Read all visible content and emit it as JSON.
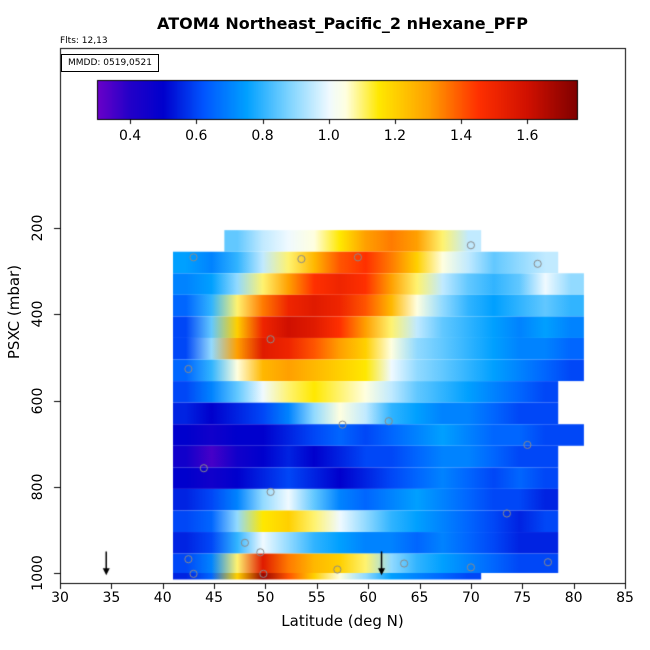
{
  "title": "ATOM4 Northeast_Pacific_2 nHexane_PFP",
  "annotations": {
    "flights": "Flts: 12,13",
    "mmdd": "MMDD: 0519,0521"
  },
  "axes": {
    "x_label": "Latitude (deg N)",
    "y_label": "PSXC (mbar)",
    "x_ticks": [
      "30",
      "35",
      "40",
      "45",
      "50",
      "55",
      "60",
      "65",
      "70",
      "75",
      "80",
      "85"
    ],
    "y_ticks": [
      "200",
      "400",
      "600",
      "800",
      "1000"
    ],
    "x_range": [
      30,
      85
    ],
    "y_range_reversed": [
      200,
      1000
    ]
  },
  "chart_data": {
    "type": "heatmap",
    "title": "ATOM4 Northeast_Pacific_2 nHexane_PFP",
    "xlabel": "Latitude (deg N)",
    "ylabel": "PSXC (mbar)",
    "value_units": "nHexane_PFP ratio",
    "x_bin_edges": [
      41,
      43.5,
      46,
      48.5,
      51,
      53.5,
      56,
      58.5,
      61,
      63.5,
      66,
      68.5,
      71,
      73.5,
      76,
      78.5,
      81
    ],
    "pressure_rows": [
      {
        "p0": 205,
        "p1": 255,
        "values": [
          null,
          null,
          0.85,
          0.95,
          1.0,
          1.05,
          1.15,
          1.3,
          1.35,
          1.3,
          1.1,
          0.95,
          null,
          null,
          null,
          null
        ]
      },
      {
        "p0": 255,
        "p1": 305,
        "values": [
          0.75,
          0.7,
          0.8,
          0.95,
          1.1,
          1.25,
          1.4,
          1.45,
          1.35,
          1.2,
          1.05,
          0.95,
          0.85,
          0.9,
          0.95,
          null
        ]
      },
      {
        "p0": 305,
        "p1": 355,
        "values": [
          0.7,
          0.75,
          0.9,
          1.1,
          1.3,
          1.45,
          1.5,
          1.45,
          1.3,
          1.1,
          0.95,
          0.85,
          0.8,
          0.85,
          1.0,
          0.9
        ]
      },
      {
        "p0": 355,
        "p1": 405,
        "values": [
          0.65,
          0.8,
          1.1,
          1.35,
          1.5,
          1.55,
          1.5,
          1.4,
          1.25,
          1.05,
          0.9,
          0.8,
          0.75,
          0.8,
          0.85,
          0.8
        ]
      },
      {
        "p0": 405,
        "p1": 455,
        "values": [
          0.6,
          0.85,
          1.2,
          1.5,
          1.6,
          1.55,
          1.45,
          1.3,
          1.1,
          0.95,
          0.85,
          0.8,
          0.75,
          0.7,
          0.75,
          0.7
        ]
      },
      {
        "p0": 455,
        "p1": 505,
        "values": [
          0.6,
          0.9,
          1.3,
          1.55,
          1.5,
          1.4,
          1.3,
          1.2,
          1.05,
          0.9,
          0.85,
          0.8,
          0.75,
          0.7,
          0.7,
          0.65
        ]
      },
      {
        "p0": 505,
        "p1": 555,
        "values": [
          0.65,
          0.8,
          1.05,
          1.25,
          1.3,
          1.25,
          1.2,
          1.15,
          1.0,
          0.9,
          0.85,
          0.8,
          0.75,
          0.7,
          0.65,
          0.6
        ]
      },
      {
        "p0": 555,
        "p1": 605,
        "values": [
          0.6,
          0.7,
          0.85,
          1.0,
          1.1,
          1.15,
          1.1,
          1.05,
          0.95,
          0.85,
          0.8,
          0.75,
          0.7,
          0.65,
          0.6,
          null
        ]
      },
      {
        "p0": 605,
        "p1": 655,
        "values": [
          0.55,
          0.5,
          0.55,
          0.6,
          0.7,
          0.9,
          1.05,
          0.95,
          0.8,
          0.75,
          0.7,
          0.7,
          0.65,
          0.6,
          0.6,
          null
        ]
      },
      {
        "p0": 655,
        "p1": 705,
        "values": [
          0.5,
          0.45,
          0.5,
          0.5,
          0.55,
          0.6,
          0.65,
          0.6,
          0.65,
          0.7,
          0.75,
          0.7,
          0.65,
          0.65,
          0.6,
          0.6
        ]
      },
      {
        "p0": 705,
        "p1": 755,
        "values": [
          0.45,
          0.35,
          0.45,
          0.5,
          0.55,
          0.5,
          0.55,
          0.6,
          0.6,
          0.65,
          0.7,
          0.7,
          0.65,
          0.6,
          0.6,
          null
        ]
      },
      {
        "p0": 755,
        "p1": 805,
        "values": [
          0.5,
          0.45,
          0.5,
          0.55,
          0.6,
          0.55,
          0.5,
          0.55,
          0.6,
          0.65,
          0.7,
          0.65,
          0.6,
          0.65,
          0.6,
          null
        ]
      },
      {
        "p0": 805,
        "p1": 855,
        "values": [
          0.55,
          0.6,
          0.7,
          0.9,
          1.0,
          0.85,
          0.7,
          0.65,
          0.7,
          0.75,
          0.7,
          0.65,
          0.6,
          0.6,
          0.55,
          null
        ]
      },
      {
        "p0": 855,
        "p1": 905,
        "values": [
          0.6,
          0.65,
          0.9,
          1.15,
          1.2,
          1.1,
          1.0,
          0.9,
          0.8,
          0.75,
          0.7,
          0.65,
          0.6,
          0.55,
          0.6,
          null
        ]
      },
      {
        "p0": 905,
        "p1": 955,
        "values": [
          0.55,
          0.6,
          0.8,
          1.0,
          0.9,
          0.8,
          0.75,
          0.7,
          0.7,
          0.65,
          0.7,
          0.65,
          0.6,
          0.55,
          0.55,
          null
        ]
      },
      {
        "p0": 955,
        "p1": 1000,
        "values": [
          0.6,
          0.7,
          1.1,
          1.55,
          1.35,
          1.25,
          1.2,
          1.1,
          0.9,
          0.8,
          0.75,
          0.7,
          0.65,
          0.6,
          0.6,
          null
        ]
      },
      {
        "p0": 1000,
        "p1": 1015,
        "values": [
          0.55,
          0.65,
          1.2,
          1.7,
          1.4,
          1.2,
          1.05,
          0.9,
          0.75,
          0.7,
          0.65,
          0.6,
          null,
          null,
          null,
          null
        ]
      }
    ],
    "colorbar": {
      "range": [
        0.3,
        1.75
      ],
      "tick_labels": [
        "0.4",
        "0.6",
        "0.8",
        "1.0",
        "1.2",
        "1.4",
        "1.6"
      ],
      "stops": [
        {
          "v": 0.3,
          "c": "#6A00C8"
        },
        {
          "v": 0.4,
          "c": "#2200C8"
        },
        {
          "v": 0.5,
          "c": "#0000CD"
        },
        {
          "v": 0.62,
          "c": "#0055FF"
        },
        {
          "v": 0.75,
          "c": "#00A0FF"
        },
        {
          "v": 0.88,
          "c": "#7FD4FF"
        },
        {
          "v": 1.0,
          "c": "#F0FAFF"
        },
        {
          "v": 1.05,
          "c": "#FFFFE0"
        },
        {
          "v": 1.15,
          "c": "#FFE800"
        },
        {
          "v": 1.3,
          "c": "#FFA000"
        },
        {
          "v": 1.45,
          "c": "#FF3000"
        },
        {
          "v": 1.6,
          "c": "#D01000"
        },
        {
          "v": 1.75,
          "c": "#7F0000"
        }
      ]
    },
    "markers": [
      [
        70,
        240
      ],
      [
        43,
        268
      ],
      [
        53.5,
        272
      ],
      [
        59,
        268
      ],
      [
        76.5,
        283
      ],
      [
        50.5,
        458
      ],
      [
        42.5,
        527
      ],
      [
        57.5,
        656
      ],
      [
        62,
        648
      ],
      [
        75.5,
        703
      ],
      [
        44,
        757
      ],
      [
        50.5,
        812
      ],
      [
        73.5,
        862
      ],
      [
        48,
        930
      ],
      [
        42.5,
        968
      ],
      [
        49.5,
        952
      ],
      [
        57,
        992
      ],
      [
        63.5,
        978
      ],
      [
        70,
        987
      ],
      [
        77.5,
        975
      ],
      [
        43,
        1002
      ],
      [
        49.8,
        1002
      ]
    ],
    "arrow_latitudes": [
      34.5,
      61.3
    ],
    "marker_color": "#8a8a8a",
    "grid": false,
    "legend_position": "top-inside-horizontal"
  }
}
